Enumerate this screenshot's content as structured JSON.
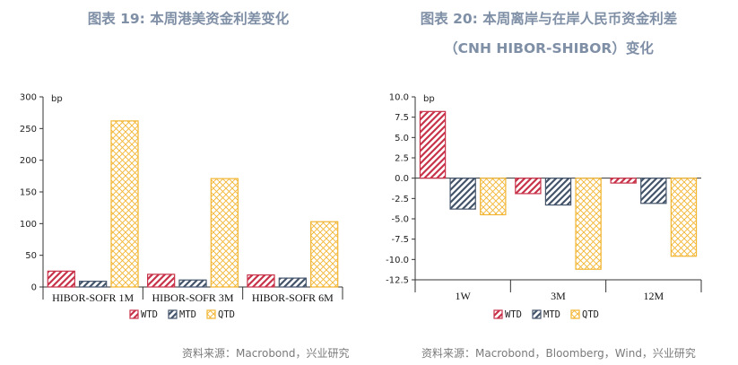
{
  "titles": {
    "left": "图表 19: 本周港美资金利差变化",
    "right_line1": "图表 20: 本周离岸与在岸人民币资金利差",
    "right_line2": "（CNH HIBOR-SHIBOR）变化"
  },
  "sources": {
    "left": "资料来源：Macrobond，兴业研究",
    "right": "资料来源：Macrobond，Bloomberg，Wind，兴业研究"
  },
  "colors": {
    "WTD": "#c8334a",
    "MTD": "#44546a",
    "QTD": "#f2b531"
  },
  "chart_data": [
    {
      "type": "bar",
      "unit_label": "bp",
      "categories": [
        "HIBOR-SOFR 1M",
        "HIBOR-SOFR 3M",
        "HIBOR-SOFR 6M"
      ],
      "series": [
        {
          "name": "WTD",
          "values": [
            25,
            20,
            19
          ]
        },
        {
          "name": "MTD",
          "values": [
            9,
            11,
            14
          ]
        },
        {
          "name": "QTD",
          "values": [
            262,
            171,
            103
          ]
        }
      ],
      "ylim": [
        0,
        300
      ],
      "yticks": [
        0,
        50,
        100,
        150,
        200,
        250,
        300
      ],
      "legend": "bottom"
    },
    {
      "type": "bar",
      "unit_label": "bp",
      "categories": [
        "1W",
        "3M",
        "12M"
      ],
      "series": [
        {
          "name": "WTD",
          "values": [
            8.2,
            -1.9,
            -0.6
          ]
        },
        {
          "name": "MTD",
          "values": [
            -3.8,
            -3.3,
            -3.1
          ]
        },
        {
          "name": "QTD",
          "values": [
            -4.5,
            -11.2,
            -9.6
          ]
        }
      ],
      "ylim": [
        -12.5,
        10.0
      ],
      "yticks": [
        10.0,
        7.5,
        5.0,
        2.5,
        0.0,
        -2.5,
        -5.0,
        -7.5,
        -10.0,
        -12.5
      ],
      "legend": "bottom"
    }
  ]
}
